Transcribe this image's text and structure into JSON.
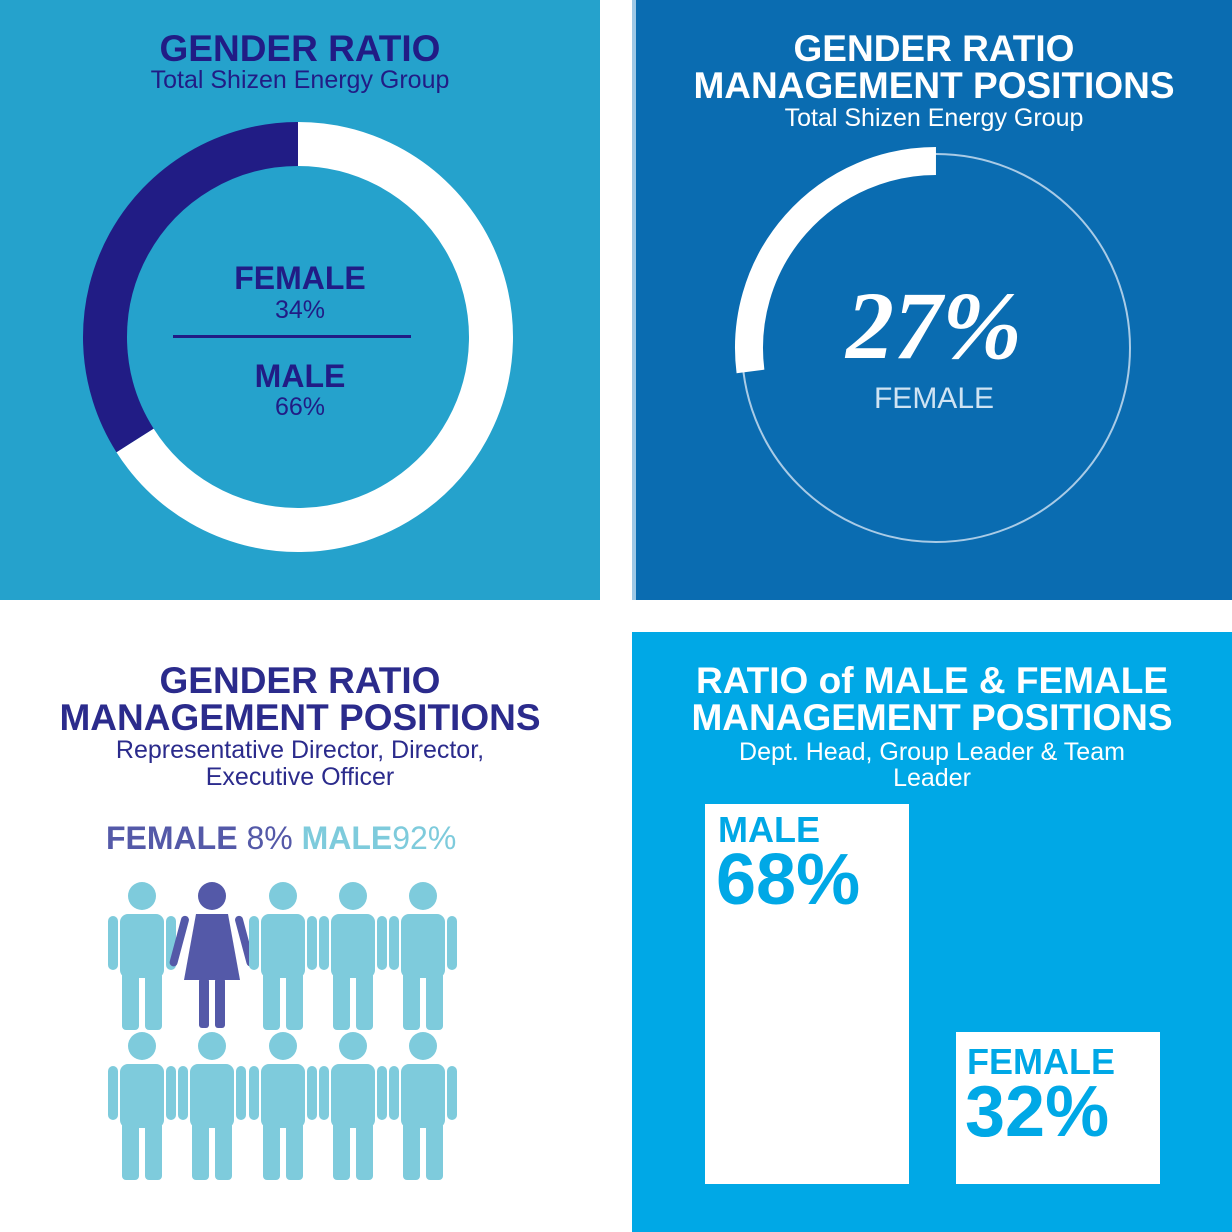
{
  "colors": {
    "panel1_bg": "#25a2cc",
    "panel2_bg": "#0a6cb1",
    "panel3_bg": "#ffffff",
    "panel4_bg": "#00a8e6",
    "navy": "#211c85",
    "indigo": "#2b2b8c",
    "female_icon": "#5459a8",
    "male_icon": "#7ecbdc",
    "bar_text": "#00a8e6",
    "white": "#ffffff"
  },
  "panel1": {
    "title": "GENDER RATIO",
    "subtitle": "Total Shizen Energy Group",
    "female_label": "FEMALE",
    "female_value": "34%",
    "male_label": "MALE",
    "male_value": "66%"
  },
  "panel2": {
    "title_line1": "GENDER RATIO",
    "title_line2": "MANAGEMENT POSITIONS",
    "subtitle": "Total Shizen Energy Group",
    "big_value": "27%",
    "big_label": "FEMALE"
  },
  "panel3": {
    "title_line1": "GENDER RATIO",
    "title_line2": "MANAGEMENT POSITIONS",
    "subtitle_line1": "Representative Director, Director,",
    "subtitle_line2": "Executive Officer",
    "female_label": "FEMALE",
    "female_value": "8%",
    "male_label": "MALE",
    "male_value": "92%"
  },
  "panel4": {
    "title_line1": "RATIO of MALE & FEMALE",
    "title_line2": "MANAGEMENT POSITIONS",
    "subtitle_line1": "Dept. Head, Group Leader & Team",
    "subtitle_line2": "Leader",
    "male_label": "MALE",
    "male_value": "68%",
    "female_label": "FEMALE",
    "female_value": "32%"
  },
  "chart_data": [
    {
      "type": "pie",
      "title": "GENDER RATIO",
      "subtitle": "Total Shizen Energy Group",
      "categories": [
        "FEMALE",
        "MALE"
      ],
      "values": [
        34,
        66
      ],
      "unit": "%",
      "colors": [
        "#211c85",
        "#ffffff"
      ]
    },
    {
      "type": "pie",
      "title": "GENDER RATIO MANAGEMENT POSITIONS",
      "subtitle": "Total Shizen Energy Group",
      "categories": [
        "FEMALE"
      ],
      "values": [
        27
      ],
      "unit": "%",
      "colors": [
        "#ffffff"
      ]
    },
    {
      "type": "pictogram",
      "title": "GENDER RATIO MANAGEMENT POSITIONS",
      "subtitle": "Representative Director, Director, Executive Officer",
      "categories": [
        "FEMALE",
        "MALE"
      ],
      "values": [
        8,
        92
      ],
      "unit": "%",
      "icons": [
        "male",
        "female",
        "male",
        "male",
        "male",
        "male",
        "male",
        "male",
        "male",
        "male"
      ]
    },
    {
      "type": "bar",
      "title": "RATIO of MALE & FEMALE MANAGEMENT POSITIONS",
      "subtitle": "Dept. Head, Group Leader & Team Leader",
      "categories": [
        "MALE",
        "FEMALE"
      ],
      "values": [
        68,
        32
      ],
      "unit": "%"
    }
  ]
}
